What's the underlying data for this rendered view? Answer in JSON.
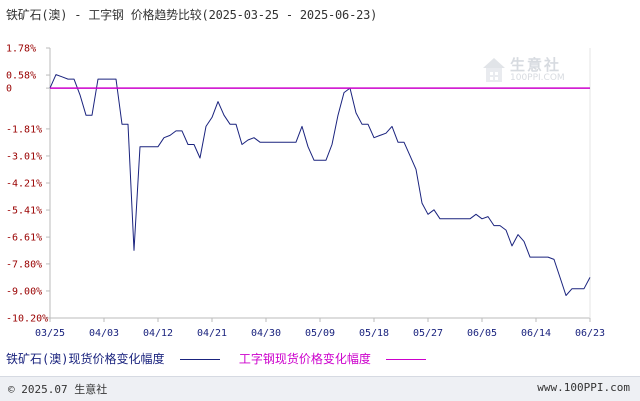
{
  "title": "铁矿石(澳) - 工字钢 价格趋势比较(2025-03-25 - 2025-06-23)",
  "colors": {
    "series1": "#1a237e",
    "series2": "#cc00cc",
    "tick_y": "#990000",
    "tick_x": "#1a237e",
    "axis": "#bbbbbb"
  },
  "footer": {
    "copyright": "© 2025.07 生意社",
    "url": "www.100PPI.com"
  },
  "watermark": {
    "text": "生意社",
    "url": "100PPI.COM"
  },
  "legend": {
    "series1_label": "铁矿石(澳)现货价格变化幅度",
    "series2_label": "工字钢现货价格变化幅度"
  },
  "chart_data": {
    "type": "line",
    "title": "铁矿石(澳) - 工字钢 价格趋势比较(2025-03-25 - 2025-06-23)",
    "y_tick_labels": [
      "1.78%",
      "0.58%",
      "0",
      "-1.81%",
      "-3.01%",
      "-4.21%",
      "-5.41%",
      "-6.61%",
      "-7.80%",
      "-9.00%",
      "-10.20%"
    ],
    "y_ticks": [
      1.78,
      0.58,
      0,
      -1.81,
      -3.01,
      -4.21,
      -5.41,
      -6.61,
      -7.8,
      -9.0,
      -10.2
    ],
    "ylim": [
      -10.2,
      1.78
    ],
    "x_tick_labels": [
      "03/25",
      "04/03",
      "04/12",
      "04/21",
      "04/30",
      "05/09",
      "05/18",
      "05/27",
      "06/05",
      "06/14",
      "06/23"
    ],
    "x_tick_days": [
      0,
      9,
      18,
      27,
      36,
      45,
      54,
      63,
      72,
      81,
      90
    ],
    "xlim": [
      0,
      90
    ],
    "grid": false,
    "legend_position": "bottom",
    "series": [
      {
        "name": "铁矿石(澳)现货价格变化幅度",
        "points": [
          [
            0,
            0.0
          ],
          [
            1,
            0.6
          ],
          [
            2,
            0.5
          ],
          [
            3,
            0.4
          ],
          [
            4,
            0.4
          ],
          [
            5,
            -0.3
          ],
          [
            6,
            -1.2
          ],
          [
            7,
            -1.2
          ],
          [
            8,
            0.4
          ],
          [
            9,
            0.4
          ],
          [
            10,
            0.4
          ],
          [
            11,
            0.4
          ],
          [
            12,
            -1.6
          ],
          [
            13,
            -1.6
          ],
          [
            14,
            -7.2
          ],
          [
            15,
            -2.6
          ],
          [
            16,
            -2.6
          ],
          [
            17,
            -2.6
          ],
          [
            18,
            -2.6
          ],
          [
            19,
            -2.2
          ],
          [
            20,
            -2.1
          ],
          [
            21,
            -1.9
          ],
          [
            22,
            -1.9
          ],
          [
            23,
            -2.5
          ],
          [
            24,
            -2.5
          ],
          [
            25,
            -3.1
          ],
          [
            26,
            -1.7
          ],
          [
            27,
            -1.3
          ],
          [
            28,
            -0.6
          ],
          [
            29,
            -1.2
          ],
          [
            30,
            -1.6
          ],
          [
            31,
            -1.6
          ],
          [
            32,
            -2.5
          ],
          [
            33,
            -2.3
          ],
          [
            34,
            -2.2
          ],
          [
            35,
            -2.4
          ],
          [
            36,
            -2.4
          ],
          [
            37,
            -2.4
          ],
          [
            38,
            -2.4
          ],
          [
            39,
            -2.4
          ],
          [
            40,
            -2.4
          ],
          [
            41,
            -2.4
          ],
          [
            42,
            -1.7
          ],
          [
            43,
            -2.6
          ],
          [
            44,
            -3.2
          ],
          [
            45,
            -3.2
          ],
          [
            46,
            -3.2
          ],
          [
            47,
            -2.5
          ],
          [
            48,
            -1.2
          ],
          [
            49,
            -0.2
          ],
          [
            50,
            0.0
          ],
          [
            51,
            -1.1
          ],
          [
            52,
            -1.6
          ],
          [
            53,
            -1.6
          ],
          [
            54,
            -2.2
          ],
          [
            55,
            -2.1
          ],
          [
            56,
            -2.0
          ],
          [
            57,
            -1.7
          ],
          [
            58,
            -2.4
          ],
          [
            59,
            -2.4
          ],
          [
            60,
            -3.0
          ],
          [
            61,
            -3.6
          ],
          [
            62,
            -5.1
          ],
          [
            63,
            -5.6
          ],
          [
            64,
            -5.4
          ],
          [
            65,
            -5.8
          ],
          [
            66,
            -5.8
          ],
          [
            67,
            -5.8
          ],
          [
            68,
            -5.8
          ],
          [
            69,
            -5.8
          ],
          [
            70,
            -5.8
          ],
          [
            71,
            -5.6
          ],
          [
            72,
            -5.8
          ],
          [
            73,
            -5.7
          ],
          [
            74,
            -6.1
          ],
          [
            75,
            -6.1
          ],
          [
            76,
            -6.3
          ],
          [
            77,
            -7.0
          ],
          [
            78,
            -6.5
          ],
          [
            79,
            -6.8
          ],
          [
            80,
            -7.5
          ],
          [
            81,
            -7.5
          ],
          [
            82,
            -7.5
          ],
          [
            83,
            -7.5
          ],
          [
            84,
            -7.6
          ],
          [
            85,
            -8.4
          ],
          [
            86,
            -9.2
          ],
          [
            87,
            -8.9
          ],
          [
            88,
            -8.9
          ],
          [
            89,
            -8.9
          ],
          [
            90,
            -8.4
          ]
        ]
      },
      {
        "name": "工字钢现货价格变化幅度",
        "points": [
          [
            0,
            0.0
          ],
          [
            90,
            0.0
          ]
        ]
      }
    ]
  }
}
